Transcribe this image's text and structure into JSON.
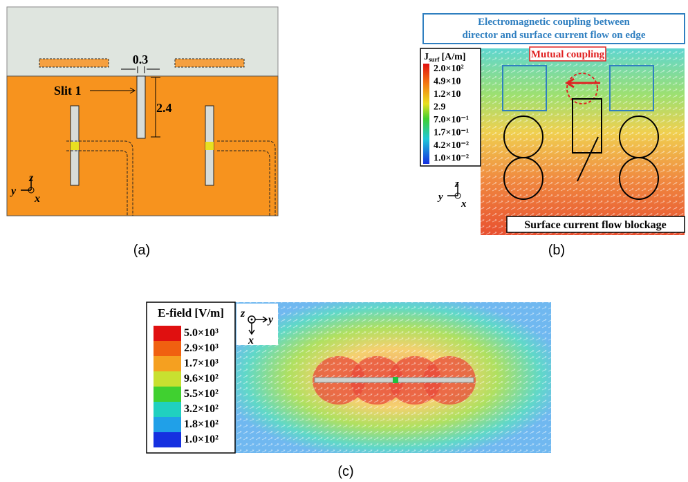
{
  "panels": {
    "a": {
      "label": "(a)",
      "gap_dim": "0.3",
      "slit": "Slit 1",
      "slit_dim": "2.4",
      "axis_z": "z",
      "axis_y": "y",
      "axis_x": "x"
    },
    "b": {
      "label": "(b)",
      "banner": [
        "Electromagnetic coupling between",
        "director and surface current flow on edge"
      ],
      "mutual": "Mutual coupling",
      "blockage": "Surface current flow blockage",
      "legend_title": {
        "main": "J",
        "sub": "surf",
        "unit": "[A/m]"
      },
      "legend_ticks": [
        "2.0×10²",
        "4.9×10",
        "1.2×10",
        "2.9",
        "7.0×10⁻¹",
        "1.7×10⁻¹",
        "4.2×10⁻²",
        "1.0×10⁻²"
      ],
      "axis_z": "z",
      "axis_y": "y",
      "axis_x": "x"
    },
    "c": {
      "label": "(c)",
      "legend_title": "E-field [V/m]",
      "legend_ticks": [
        "5.0×10³",
        "2.9×10³",
        "1.7×10³",
        "9.6×10²",
        "5.5×10²",
        "3.2×10²",
        "1.8×10²",
        "1.0×10²"
      ],
      "axis_z": "z",
      "axis_y": "y",
      "axis_x": "x"
    }
  }
}
